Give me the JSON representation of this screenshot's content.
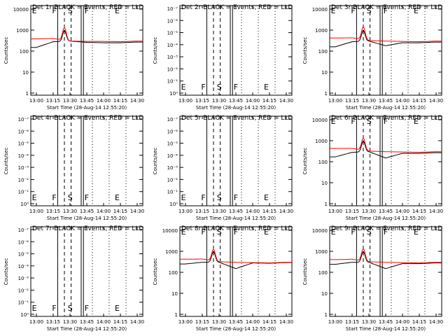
{
  "x_tick_labels": [
    "13:00",
    "13:15",
    "13:30",
    "13:45",
    "14:00",
    "14:15",
    "14:30"
  ],
  "xlabel": "Start Time (28-Aug-14 12:55:20)",
  "ylabel": "Counts/sec",
  "marker_labels": [
    "E",
    "F",
    "S",
    "F",
    "E"
  ],
  "colors": {
    "events": "#000000",
    "lld": "#ff0000"
  },
  "chart_data": [
    {
      "type": "line",
      "title": "Det 1r BLACK = Events, RED = LLD",
      "xlabel": "Start Time (28-Aug-14 12:55:20)",
      "ylabel": "Counts/sec",
      "yscale": "log",
      "has_data": true,
      "y_tick_labels": [
        "1",
        "10",
        "100",
        "1000",
        "10000"
      ],
      "ylim": [
        1,
        10000
      ],
      "x": [
        "13:00",
        "13:15",
        "13:30",
        "13:45",
        "14:00",
        "14:15",
        "14:30"
      ],
      "series": [
        {
          "values": [
            150,
            280,
            300,
            260,
            250,
            250,
            270
          ]
        },
        {
          "values": [
            380,
            400,
            300,
            290,
            290,
            280,
            300
          ]
        }
      ],
      "peak": {
        "time": "13:25",
        "events": 1000,
        "lld": 1400
      }
    },
    {
      "type": "line",
      "title": "Det 2r BLACK = Events, RED = LLD",
      "xlabel": "Start Time (28-Aug-14 12:55:20)",
      "ylabel": "Counts/sec",
      "yscale": "log",
      "has_data": false,
      "y_tick_labels": [
        "10⁰",
        "10⁻¹",
        "10⁻²",
        "10⁻³",
        "10⁻⁴",
        "10⁻⁵",
        "10⁻⁶",
        "10⁻⁷"
      ]
    },
    {
      "type": "line",
      "title": "Det 3r BLACK = Events, RED = LLD",
      "xlabel": "Start Time (28-Aug-14 12:55:20)",
      "ylabel": "Counts/sec",
      "yscale": "log",
      "has_data": true,
      "y_tick_labels": [
        "1",
        "10",
        "100",
        "1000",
        "10000"
      ],
      "ylim": [
        1,
        10000
      ],
      "x": [
        "13:00",
        "13:15",
        "13:30",
        "13:45",
        "14:00",
        "14:15",
        "14:30"
      ],
      "series": [
        {
          "values": [
            160,
            280,
            300,
            180,
            250,
            250,
            270
          ]
        },
        {
          "values": [
            420,
            430,
            320,
            300,
            290,
            280,
            300
          ]
        }
      ],
      "peak": {
        "time": "13:25",
        "events": 1000,
        "lld": 1500
      }
    },
    {
      "type": "line",
      "title": "Det 4r BLACK = Events, RED = LLD",
      "xlabel": "Start Time (28-Aug-14 12:55:20)",
      "ylabel": "Counts/sec",
      "yscale": "log",
      "has_data": false,
      "y_tick_labels": [
        "10⁰",
        "10⁻¹",
        "10⁻²",
        "10⁻³",
        "10⁻⁴",
        "10⁻⁵",
        "10⁻⁶",
        "10⁻⁷"
      ]
    },
    {
      "type": "line",
      "title": "Det 5r BLACK = Events, RED = LLD",
      "xlabel": "Start Time (28-Aug-14 12:55:20)",
      "ylabel": "Counts/sec",
      "yscale": "log",
      "has_data": false,
      "y_tick_labels": [
        "10⁰",
        "10⁻¹",
        "10⁻²",
        "10⁻³",
        "10⁻⁴",
        "10⁻⁵",
        "10⁻⁶",
        "10⁻⁷"
      ]
    },
    {
      "type": "line",
      "title": "Det 6r BLACK = Events, RED = LLD",
      "xlabel": "Start Time (28-Aug-14 12:55:20)",
      "ylabel": "Counts/sec",
      "yscale": "log",
      "has_data": true,
      "y_tick_labels": [
        "1",
        "10",
        "100",
        "1000",
        "10000"
      ],
      "ylim": [
        1,
        10000
      ],
      "x": [
        "13:00",
        "13:15",
        "13:30",
        "13:45",
        "14:00",
        "14:15",
        "14:30"
      ],
      "series": [
        {
          "values": [
            170,
            280,
            300,
            150,
            250,
            250,
            270
          ]
        },
        {
          "values": [
            430,
            430,
            320,
            300,
            290,
            280,
            300
          ]
        }
      ],
      "peak": {
        "time": "13:25",
        "events": 1000,
        "lld": 1400
      }
    },
    {
      "type": "line",
      "title": "Det 7r BLACK = Events, RED = LLD",
      "xlabel": "Start Time (28-Aug-14 12:55:20)",
      "ylabel": "Counts/sec",
      "yscale": "log",
      "has_data": false,
      "y_tick_labels": [
        "10⁰",
        "10⁻¹",
        "10⁻²",
        "10⁻³",
        "10⁻⁴",
        "10⁻⁵",
        "10⁻⁶",
        "10⁻⁷"
      ]
    },
    {
      "type": "line",
      "title": "Det 8r BLACK = Events, RED = LLD",
      "xlabel": "Start Time (28-Aug-14 12:55:20)",
      "ylabel": "Counts/sec",
      "yscale": "log",
      "has_data": true,
      "y_tick_labels": [
        "1",
        "10",
        "100",
        "1000",
        "10000"
      ],
      "ylim": [
        1,
        10000
      ],
      "x": [
        "13:00",
        "13:15",
        "13:30",
        "13:45",
        "14:00",
        "14:15",
        "14:30"
      ],
      "series": [
        {
          "values": [
            250,
            300,
            300,
            150,
            280,
            270,
            290
          ]
        },
        {
          "values": [
            420,
            430,
            320,
            300,
            290,
            280,
            300
          ]
        }
      ],
      "peak": {
        "time": "13:25",
        "events": 1000,
        "lld": 1300
      }
    },
    {
      "type": "line",
      "title": "Det 9r BLACK = Events, RED = LLD",
      "xlabel": "Start Time (28-Aug-14 12:55:20)",
      "ylabel": "Counts/sec",
      "yscale": "log",
      "has_data": true,
      "y_tick_labels": [
        "1",
        "10",
        "100",
        "1000",
        "10000"
      ],
      "ylim": [
        1,
        10000
      ],
      "x": [
        "13:00",
        "13:15",
        "13:30",
        "13:45",
        "14:00",
        "14:15",
        "14:30"
      ],
      "series": [
        {
          "values": [
            240,
            300,
            300,
            150,
            260,
            260,
            280
          ]
        },
        {
          "values": [
            400,
            420,
            320,
            300,
            290,
            280,
            300
          ]
        }
      ],
      "peak": {
        "time": "13:25",
        "events": 1000,
        "lld": 1400
      }
    }
  ]
}
